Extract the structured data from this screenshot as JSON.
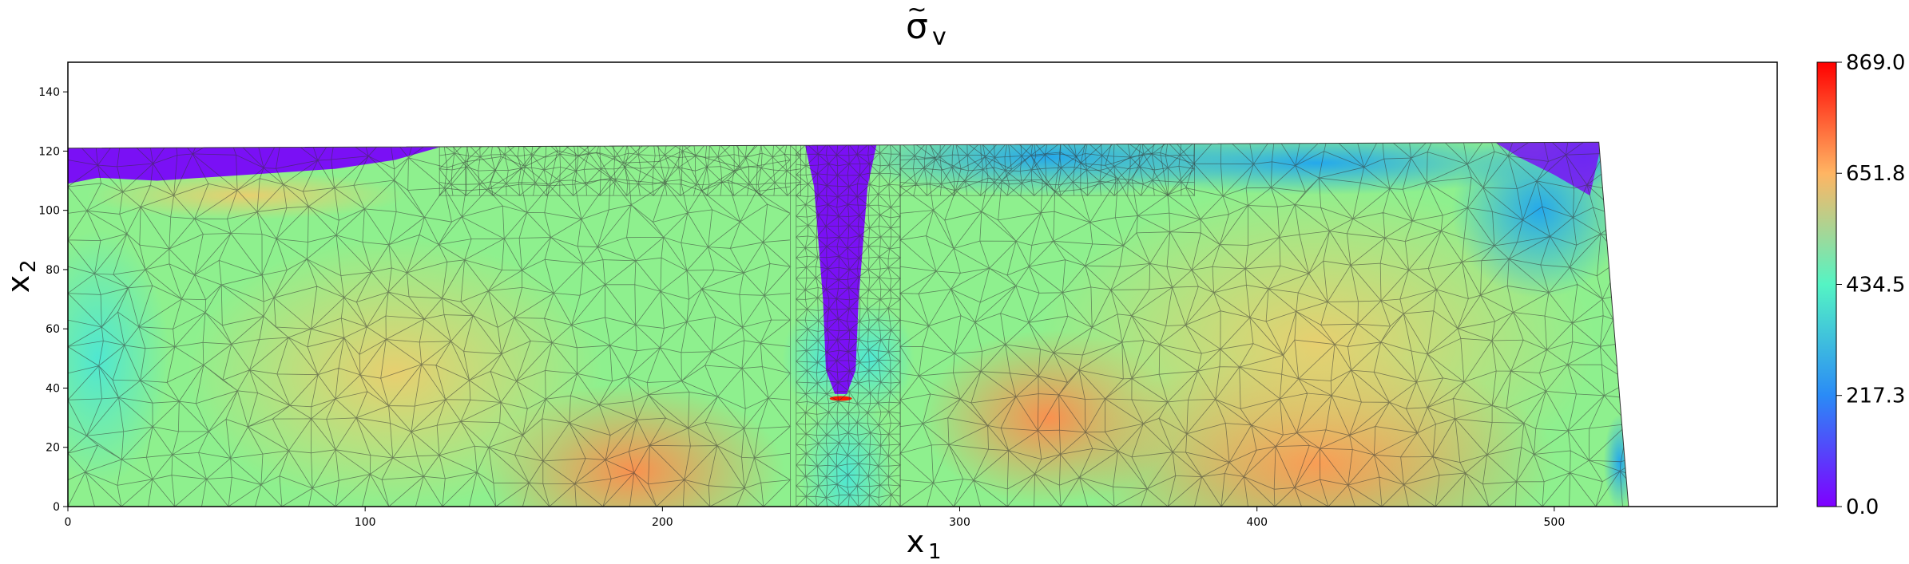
{
  "chart_data": {
    "type": "heatmap",
    "title": {
      "symbol": "σ",
      "subscript": "v",
      "accent": "~"
    },
    "xlabel": {
      "symbol": "x",
      "subscript": "1"
    },
    "ylabel": {
      "symbol": "x",
      "subscript": "2"
    },
    "xlim": [
      0,
      575
    ],
    "ylim": [
      0,
      150
    ],
    "x_ticks": [
      "0",
      "100",
      "200",
      "300",
      "400",
      "500"
    ],
    "y_ticks": [
      "0",
      "20",
      "40",
      "60",
      "80",
      "100",
      "120",
      "140"
    ],
    "colormap": "rainbow",
    "colorbar": {
      "min": 0.0,
      "max": 869.0,
      "tick_labels": [
        "0.0",
        "217.3",
        "434.5",
        "651.8",
        "869.0"
      ]
    },
    "domain_outline": [
      [
        0,
        0
      ],
      [
        525,
        0
      ],
      [
        515,
        123
      ],
      [
        0,
        121
      ]
    ],
    "notch": {
      "x": 260,
      "width": 18,
      "tip_y": 38,
      "top_y": 121
    },
    "field_samples": [
      {
        "x": 20,
        "y": 60,
        "value": 470
      },
      {
        "x": 100,
        "y": 40,
        "value": 560
      },
      {
        "x": 200,
        "y": 10,
        "value": 690
      },
      {
        "x": 150,
        "y": 80,
        "value": 520
      },
      {
        "x": 260,
        "y": 10,
        "value": 420
      },
      {
        "x": 330,
        "y": 20,
        "value": 650
      },
      {
        "x": 400,
        "y": 10,
        "value": 700
      },
      {
        "x": 450,
        "y": 30,
        "value": 690
      },
      {
        "x": 500,
        "y": 80,
        "value": 460
      },
      {
        "x": 500,
        "y": 100,
        "value": 300
      },
      {
        "x": 320,
        "y": 110,
        "value": 350
      },
      {
        "x": 40,
        "y": 118,
        "value": 0
      },
      {
        "x": 262,
        "y": 80,
        "value": 0
      },
      {
        "x": 262,
        "y": 38,
        "value": 869
      }
    ]
  }
}
